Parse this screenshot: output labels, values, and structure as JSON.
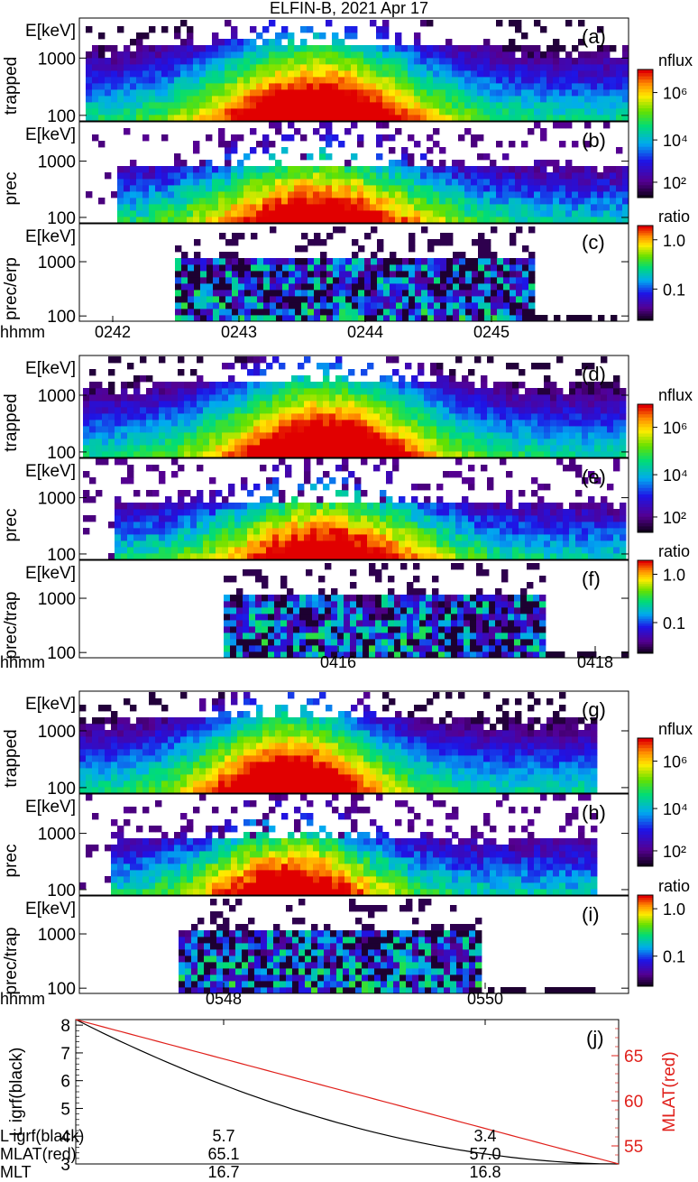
{
  "title": "ELFIN-B, 2021 Apr 17",
  "colorbars": {
    "nflux": {
      "label": "nflux",
      "ticks": [
        "10⁶",
        "10⁴",
        "10²"
      ]
    },
    "ratio": {
      "label": "ratio",
      "ticks": [
        "1.0",
        "0.1"
      ]
    }
  },
  "energy_axis": {
    "label": "E[keV]",
    "ticks": [
      "1000",
      "100"
    ]
  },
  "time_label": "hhmm",
  "groups": [
    {
      "time_ticks": [
        "0242",
        "0243",
        "0244",
        "0245"
      ]
    },
    {
      "time_ticks": [
        "0416",
        "0418"
      ]
    },
    {
      "time_ticks": [
        "0548",
        "0550"
      ]
    }
  ],
  "panels": [
    {
      "letter": "(a)",
      "ylabel": "trapped",
      "colorbar": "nflux"
    },
    {
      "letter": "(b)",
      "ylabel": "prec",
      "colorbar": "nflux"
    },
    {
      "letter": "(c)",
      "ylabel": "prec/erp",
      "colorbar": "ratio"
    },
    {
      "letter": "(d)",
      "ylabel": "trapped",
      "colorbar": "nflux"
    },
    {
      "letter": "(e)",
      "ylabel": "prec",
      "colorbar": "nflux"
    },
    {
      "letter": "(f)",
      "ylabel": "prec/trap",
      "colorbar": "ratio"
    },
    {
      "letter": "(g)",
      "ylabel": "trapped",
      "colorbar": "nflux"
    },
    {
      "letter": "(h)",
      "ylabel": "prec",
      "colorbar": "nflux"
    },
    {
      "letter": "(i)",
      "ylabel": "prec/trap",
      "colorbar": "ratio"
    }
  ],
  "panel_j": {
    "letter": "(j)",
    "left_label": "L igrf(black)",
    "right_label": "MLAT(red)",
    "left_ticks": [
      "8",
      "7",
      "6",
      "5",
      "4",
      "3"
    ],
    "right_ticks": [
      "65",
      "60",
      "55"
    ]
  },
  "footer": {
    "rows": [
      {
        "label": "L igrf(black)",
        "values": [
          "5.7",
          "3.4"
        ]
      },
      {
        "label": "MLAT(red)",
        "values": [
          "65.1",
          "57.0"
        ]
      },
      {
        "label": "MLT",
        "values": [
          "16.7",
          "16.8"
        ]
      }
    ]
  },
  "chart_data": {
    "type": "heatmap",
    "title": "ELFIN-B, 2021 Apr 17",
    "colorscale": "rainbow (purple-blue-cyan-green-yellow-red)",
    "energy_range_keV": [
      80,
      5000
    ],
    "spectrogram_panels": 9,
    "line_panel": {
      "type": "line",
      "series": [
        {
          "name": "L igrf(black)",
          "color": "#000000",
          "start": 8.2,
          "end": 3.0,
          "shape": "decaying"
        },
        {
          "name": "MLAT(red)",
          "color": "#e0201b",
          "start": 69,
          "end": 53,
          "shape": "linear"
        }
      ],
      "ylim_left": [
        3,
        8.2
      ],
      "ylim_right": [
        53,
        69
      ]
    }
  }
}
